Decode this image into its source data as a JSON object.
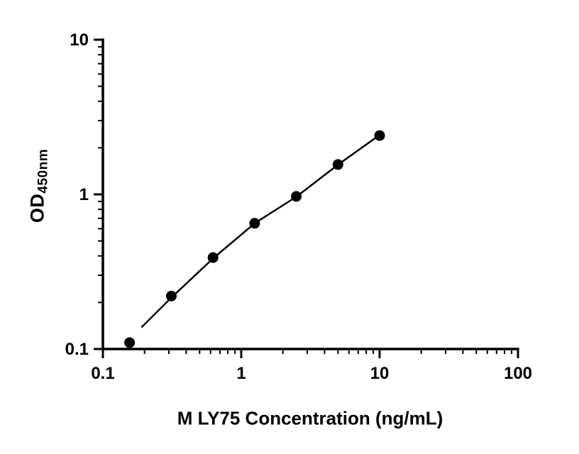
{
  "chart_data": {
    "type": "scatter",
    "title": "",
    "xlabel": "M LY75 Concentration (ng/mL)",
    "ylabel": "OD",
    "ylabel_sub": "450nm",
    "x_scale": "log",
    "y_scale": "log",
    "xlim": [
      0.1,
      100
    ],
    "ylim": [
      0.1,
      10
    ],
    "grid": false,
    "legend": "none",
    "minor_ticks": true,
    "x_major_ticks": [
      0.1,
      1,
      10,
      100
    ],
    "x_major_labels": [
      "0.1",
      "1",
      "10",
      "100"
    ],
    "y_major_ticks": [
      0.1,
      1,
      10
    ],
    "y_major_labels": [
      "0.1",
      "1",
      "10"
    ],
    "points": [
      {
        "x": 0.156,
        "y": 0.11
      },
      {
        "x": 0.3125,
        "y": 0.22
      },
      {
        "x": 0.625,
        "y": 0.39
      },
      {
        "x": 1.25,
        "y": 0.65
      },
      {
        "x": 2.5,
        "y": 0.97
      },
      {
        "x": 5,
        "y": 1.56
      },
      {
        "x": 10,
        "y": 2.4
      }
    ],
    "fit_line": [
      [
        0.19,
        0.138
      ],
      [
        0.3125,
        0.215
      ],
      [
        0.625,
        0.385
      ],
      [
        1.25,
        0.65
      ],
      [
        2.5,
        0.965
      ],
      [
        5,
        1.555
      ],
      [
        10,
        2.42
      ]
    ],
    "marker": {
      "shape": "circle",
      "color": "#000000",
      "radius": 7.5
    },
    "line_color": "#000000",
    "axis_color": "#000000",
    "background": "#ffffff"
  }
}
